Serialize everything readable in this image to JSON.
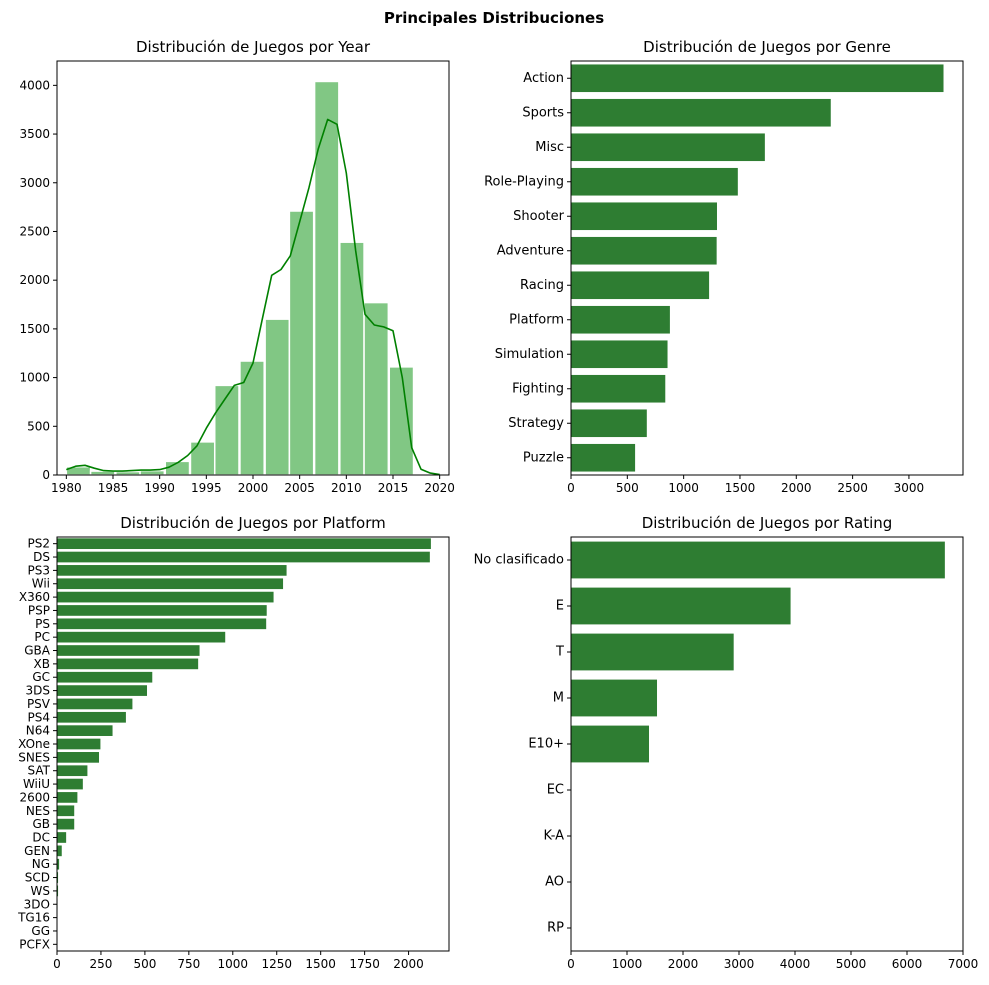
{
  "figure": {
    "suptitle": "Principales Distribuciones",
    "colors": {
      "bar": "#2e7d32",
      "hist": "#81c784",
      "kde": "#008000",
      "axis": "#000000"
    }
  },
  "chart_data": [
    {
      "id": "year",
      "type": "bar",
      "title": "Distribución de Juegos por Year",
      "xlabel": "",
      "ylabel": "",
      "xlim": [
        1979,
        2021
      ],
      "ylim": [
        0,
        4250
      ],
      "xticks": [
        1980,
        1985,
        1990,
        1995,
        2000,
        2005,
        2010,
        2015,
        2020
      ],
      "yticks": [
        0,
        500,
        1000,
        1500,
        2000,
        2500,
        3000,
        3500,
        4000
      ],
      "bin_width": 2.6,
      "bins": [
        {
          "start": 1980.0,
          "value": 85
        },
        {
          "start": 1982.6,
          "value": 40
        },
        {
          "start": 1985.3,
          "value": 35
        },
        {
          "start": 1987.9,
          "value": 45
        },
        {
          "start": 1990.6,
          "value": 140
        },
        {
          "start": 1993.3,
          "value": 340
        },
        {
          "start": 1995.9,
          "value": 920
        },
        {
          "start": 1998.6,
          "value": 1170
        },
        {
          "start": 2001.3,
          "value": 1600
        },
        {
          "start": 2003.9,
          "value": 2710
        },
        {
          "start": 2006.6,
          "value": 4040
        },
        {
          "start": 2009.3,
          "value": 2390
        },
        {
          "start": 2011.9,
          "value": 1770
        },
        {
          "start": 2014.6,
          "value": 1110
        }
      ],
      "kde": {
        "x": [
          1980,
          1981,
          1982,
          1983,
          1984,
          1985,
          1986,
          1987,
          1988,
          1989,
          1990,
          1991,
          1992,
          1993,
          1994,
          1995,
          1996,
          1997,
          1998,
          1999,
          2000,
          2001,
          2002,
          2003,
          2004,
          2005,
          2006,
          2007,
          2008,
          2009,
          2010,
          2011,
          2012,
          2013,
          2014,
          2015,
          2016,
          2017,
          2018,
          2019,
          2020
        ],
        "y": [
          55,
          90,
          100,
          70,
          45,
          40,
          40,
          45,
          50,
          50,
          55,
          80,
          130,
          200,
          300,
          480,
          640,
          780,
          920,
          950,
          1150,
          1600,
          2050,
          2110,
          2250,
          2600,
          2950,
          3350,
          3650,
          3600,
          3100,
          2300,
          1650,
          1540,
          1520,
          1480,
          1000,
          280,
          60,
          20,
          5
        ]
      }
    },
    {
      "id": "genre",
      "type": "bar",
      "title": "Distribución de Juegos por Genre",
      "xlabel": "",
      "ylabel": "",
      "xlim": [
        0,
        3480
      ],
      "xticks": [
        0,
        500,
        1000,
        1500,
        2000,
        2500,
        3000
      ],
      "categories": [
        "Action",
        "Sports",
        "Misc",
        "Role-Playing",
        "Shooter",
        "Adventure",
        "Racing",
        "Platform",
        "Simulation",
        "Fighting",
        "Strategy",
        "Puzzle"
      ],
      "values": [
        3307,
        2306,
        1721,
        1481,
        1296,
        1293,
        1226,
        878,
        857,
        837,
        673,
        569
      ]
    },
    {
      "id": "platform",
      "type": "bar",
      "title": "Distribución de Juegos por Platform",
      "xlabel": "",
      "ylabel": "",
      "xlim": [
        0,
        2230
      ],
      "xticks": [
        0,
        250,
        500,
        750,
        1000,
        1250,
        1500,
        1750,
        2000
      ],
      "categories": [
        "PS2",
        "DS",
        "PS3",
        "Wii",
        "X360",
        "PSP",
        "PS",
        "PC",
        "GBA",
        "XB",
        "GC",
        "3DS",
        "PSV",
        "PS4",
        "N64",
        "XOne",
        "SNES",
        "SAT",
        "WiiU",
        "2600",
        "NES",
        "GB",
        "DC",
        "GEN",
        "NG",
        "SCD",
        "WS",
        "3DO",
        "TG16",
        "GG",
        "PCFX"
      ],
      "values": [
        2127,
        2121,
        1306,
        1286,
        1232,
        1193,
        1190,
        957,
        811,
        803,
        542,
        512,
        429,
        392,
        316,
        247,
        239,
        173,
        147,
        116,
        98,
        98,
        52,
        27,
        12,
        6,
        6,
        3,
        2,
        1,
        1
      ]
    },
    {
      "id": "rating",
      "type": "bar",
      "title": "Distribución de Juegos por Rating",
      "xlabel": "",
      "ylabel": "",
      "xlim": [
        0,
        7000
      ],
      "xticks": [
        0,
        1000,
        2000,
        3000,
        4000,
        5000,
        6000,
        7000
      ],
      "categories": [
        "No clasificado",
        "E",
        "T",
        "M",
        "E10+",
        "EC",
        "K-A",
        "AO",
        "RP"
      ],
      "values": [
        6676,
        3921,
        2905,
        1536,
        1393,
        8,
        3,
        1,
        1
      ]
    }
  ]
}
